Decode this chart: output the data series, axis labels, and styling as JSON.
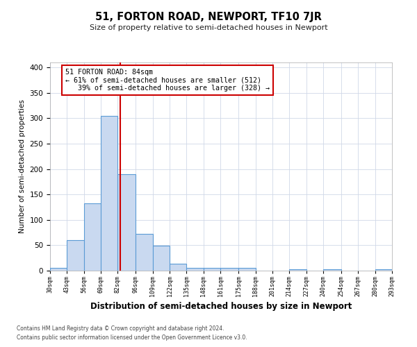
{
  "title": "51, FORTON ROAD, NEWPORT, TF10 7JR",
  "subtitle": "Size of property relative to semi-detached houses in Newport",
  "xlabel": "Distribution of semi-detached houses by size in Newport",
  "ylabel": "Number of semi-detached properties",
  "bar_edges": [
    30,
    43,
    56,
    69,
    82,
    96,
    109,
    122,
    135,
    148,
    161,
    175,
    188,
    201,
    214,
    227,
    240,
    254,
    267,
    280,
    293
  ],
  "bar_heights": [
    6,
    60,
    132,
    305,
    190,
    73,
    49,
    13,
    6,
    6,
    6,
    5,
    0,
    0,
    3,
    0,
    3,
    0,
    0,
    3
  ],
  "tick_labels": [
    "30sqm",
    "43sqm",
    "56sqm",
    "69sqm",
    "82sqm",
    "96sqm",
    "109sqm",
    "122sqm",
    "135sqm",
    "148sqm",
    "161sqm",
    "175sqm",
    "188sqm",
    "201sqm",
    "214sqm",
    "227sqm",
    "240sqm",
    "254sqm",
    "267sqm",
    "280sqm",
    "293sqm"
  ],
  "property_size": 84,
  "property_label": "51 FORTON ROAD: 84sqm",
  "pct_smaller": 61,
  "pct_larger": 39,
  "count_smaller": 512,
  "count_larger": 328,
  "bar_color": "#c9d9f0",
  "bar_edge_color": "#5b9bd5",
  "vline_color": "#cc0000",
  "box_edge_color": "#cc0000",
  "ylim": [
    0,
    410
  ],
  "yticks": [
    0,
    50,
    100,
    150,
    200,
    250,
    300,
    350,
    400
  ],
  "background_color": "#ffffff",
  "grid_color": "#d0d8e8",
  "footer1": "Contains HM Land Registry data © Crown copyright and database right 2024.",
  "footer2": "Contains public sector information licensed under the Open Government Licence v3.0."
}
